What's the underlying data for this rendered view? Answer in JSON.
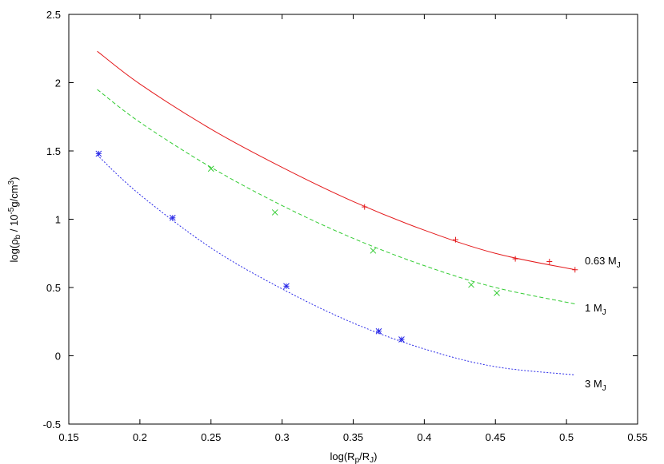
{
  "chart_data": {
    "type": "line",
    "title": "",
    "xlabel": {
      "base": "log(R",
      "sub1": "p",
      "mid": "/R",
      "sub2": "J",
      "end": ")"
    },
    "ylabel": {
      "base": "log(ρ",
      "sub": "b",
      "mid": " / 10",
      "sup1": "-5",
      "unit": "g/cm",
      "sup2": "3",
      "end": ")"
    },
    "xlim": [
      0.15,
      0.55
    ],
    "ylim": [
      -0.5,
      2.5
    ],
    "x_ticks": [
      "0.15",
      "0.2",
      "0.25",
      "0.3",
      "0.35",
      "0.4",
      "0.45",
      "0.5",
      "0.55"
    ],
    "y_ticks": [
      "-0.5",
      "0",
      "0.5",
      "1",
      "1.5",
      "2",
      "2.5"
    ],
    "grid": false,
    "legend": "inline labels at right end of curves",
    "series": [
      {
        "label": {
          "text": "0.63 M",
          "sub": "J"
        },
        "color": "#e41a1c",
        "line_style": "solid",
        "marker": "plus",
        "curve_x": [
          0.17,
          0.2,
          0.25,
          0.3,
          0.35,
          0.4,
          0.45,
          0.506
        ],
        "curve_y": [
          2.23,
          1.99,
          1.66,
          1.38,
          1.13,
          0.92,
          0.75,
          0.63
        ],
        "points_x": [
          0.358,
          0.422,
          0.464,
          0.488,
          0.506
        ],
        "points_y": [
          1.09,
          0.85,
          0.71,
          0.69,
          0.63
        ]
      },
      {
        "label": {
          "text": "1 M",
          "sub": "J"
        },
        "color": "#33cc33",
        "line_style": "dashed",
        "marker": "cross",
        "curve_x": [
          0.17,
          0.2,
          0.25,
          0.3,
          0.35,
          0.4,
          0.45,
          0.506
        ],
        "curve_y": [
          1.95,
          1.71,
          1.38,
          1.1,
          0.86,
          0.66,
          0.5,
          0.38
        ],
        "points_x": [
          0.25,
          0.295,
          0.364,
          0.433,
          0.451
        ],
        "points_y": [
          1.37,
          1.05,
          0.77,
          0.52,
          0.46
        ]
      },
      {
        "label": {
          "text": "3 M",
          "sub": "J"
        },
        "color": "#2a2ae8",
        "line_style": "dotted",
        "marker": "asterisk",
        "curve_x": [
          0.17,
          0.2,
          0.25,
          0.3,
          0.35,
          0.4,
          0.45,
          0.506
        ],
        "curve_y": [
          1.47,
          1.18,
          0.79,
          0.49,
          0.24,
          0.05,
          -0.08,
          -0.14
        ],
        "points_x": [
          0.171,
          0.223,
          0.303,
          0.368,
          0.384
        ],
        "points_y": [
          1.48,
          1.01,
          0.51,
          0.18,
          0.12
        ]
      }
    ]
  }
}
